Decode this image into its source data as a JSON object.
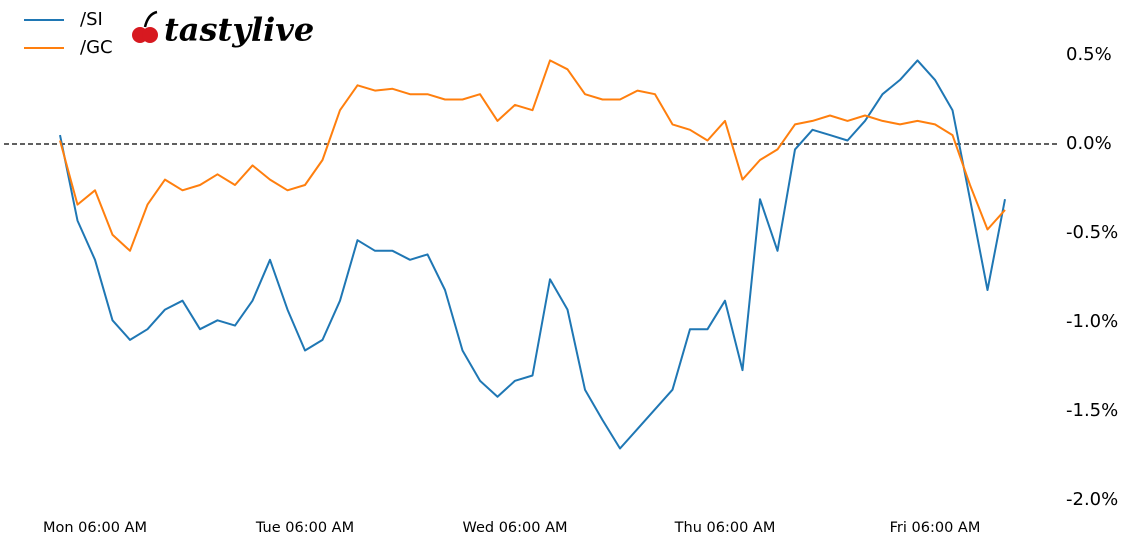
{
  "chart_data": {
    "type": "line",
    "logo": "tastylive",
    "x": [
      "Mon 02:00 AM",
      "Mon 04:00 AM",
      "Mon 06:00 AM",
      "Mon 08:00 AM",
      "Mon 10:00 AM",
      "Mon 12:00 PM",
      "Mon 02:00 PM",
      "Mon 04:00 PM",
      "Mon 06:00 PM",
      "Mon 08:00 PM",
      "Mon 10:00 PM",
      "Tue 12:00 AM",
      "Tue 02:00 AM",
      "Tue 04:00 AM",
      "Tue 06:00 AM",
      "Tue 08:00 AM",
      "Tue 10:00 AM",
      "Tue 12:00 PM",
      "Tue 02:00 PM",
      "Tue 04:00 PM",
      "Tue 06:00 PM",
      "Tue 08:00 PM",
      "Tue 10:00 PM",
      "Wed 12:00 AM",
      "Wed 02:00 AM",
      "Wed 04:00 AM",
      "Wed 06:00 AM",
      "Wed 08:00 AM",
      "Wed 10:00 AM",
      "Wed 12:00 PM",
      "Wed 02:00 PM",
      "Wed 04:00 PM",
      "Wed 06:00 PM",
      "Wed 08:00 PM",
      "Wed 10:00 PM",
      "Thu 12:00 AM",
      "Thu 02:00 AM",
      "Thu 04:00 AM",
      "Thu 06:00 AM",
      "Thu 08:00 AM",
      "Thu 10:00 AM",
      "Thu 12:00 PM",
      "Thu 02:00 PM",
      "Thu 04:00 PM",
      "Thu 06:00 PM",
      "Thu 08:00 PM",
      "Thu 10:00 PM",
      "Fri 12:00 AM",
      "Fri 02:00 AM",
      "Fri 04:00 AM",
      "Fri 06:00 AM",
      "Fri 08:00 AM",
      "Fri 10:00 AM",
      "Fri 12:00 PM",
      "Fri 02:00 PM"
    ],
    "series": [
      {
        "name": "/SI",
        "color": "#1f77b4",
        "values": [
          0.05,
          -0.43,
          -0.65,
          -0.99,
          -1.1,
          -1.04,
          -0.93,
          -0.88,
          -1.04,
          -0.99,
          -1.02,
          -0.88,
          -0.65,
          -0.93,
          -1.16,
          -1.1,
          -0.88,
          -0.54,
          -0.6,
          -0.6,
          -0.65,
          -0.62,
          -0.82,
          -1.16,
          -1.33,
          -1.42,
          -1.33,
          -1.3,
          -0.76,
          -0.93,
          -1.38,
          -1.55,
          -1.71,
          -1.6,
          -1.49,
          -1.38,
          -1.04,
          -1.04,
          -0.88,
          -1.27,
          -0.31,
          -0.6,
          -0.03,
          0.08,
          0.05,
          0.02,
          0.13,
          0.28,
          0.36,
          0.47,
          0.36,
          0.19,
          -0.31,
          -0.82,
          -0.31
        ]
      },
      {
        "name": "/GC",
        "color": "#ff7f0e",
        "values": [
          0.02,
          -0.34,
          -0.26,
          -0.51,
          -0.6,
          -0.34,
          -0.2,
          -0.26,
          -0.23,
          -0.17,
          -0.23,
          -0.12,
          -0.2,
          -0.26,
          -0.23,
          -0.09,
          0.19,
          0.33,
          0.3,
          0.31,
          0.28,
          0.28,
          0.25,
          0.25,
          0.28,
          0.13,
          0.22,
          0.19,
          0.47,
          0.42,
          0.28,
          0.25,
          0.25,
          0.3,
          0.28,
          0.11,
          0.08,
          0.02,
          0.13,
          -0.2,
          -0.09,
          -0.03,
          0.11,
          0.13,
          0.16,
          0.13,
          0.16,
          0.13,
          0.11,
          0.13,
          0.11,
          0.05,
          -0.23,
          -0.48,
          -0.37
        ]
      }
    ],
    "xticks": [
      "Mon 06:00 AM",
      "Tue 06:00 AM",
      "Wed 06:00 AM",
      "Thu 06:00 AM",
      "Fri 06:00 AM"
    ],
    "ylim": [
      -2.05,
      0.75
    ],
    "yticks": [
      {
        "value": 0.5,
        "label": "0.5%"
      },
      {
        "value": 0.0,
        "label": "0.0%"
      },
      {
        "value": -0.5,
        "label": "-0.5%"
      },
      {
        "value": -1.0,
        "label": "-1.0%"
      },
      {
        "value": -1.5,
        "label": "-1.5%"
      },
      {
        "value": -2.0,
        "label": "-2.0%"
      }
    ],
    "hline": 0,
    "legend": "upper-left"
  }
}
